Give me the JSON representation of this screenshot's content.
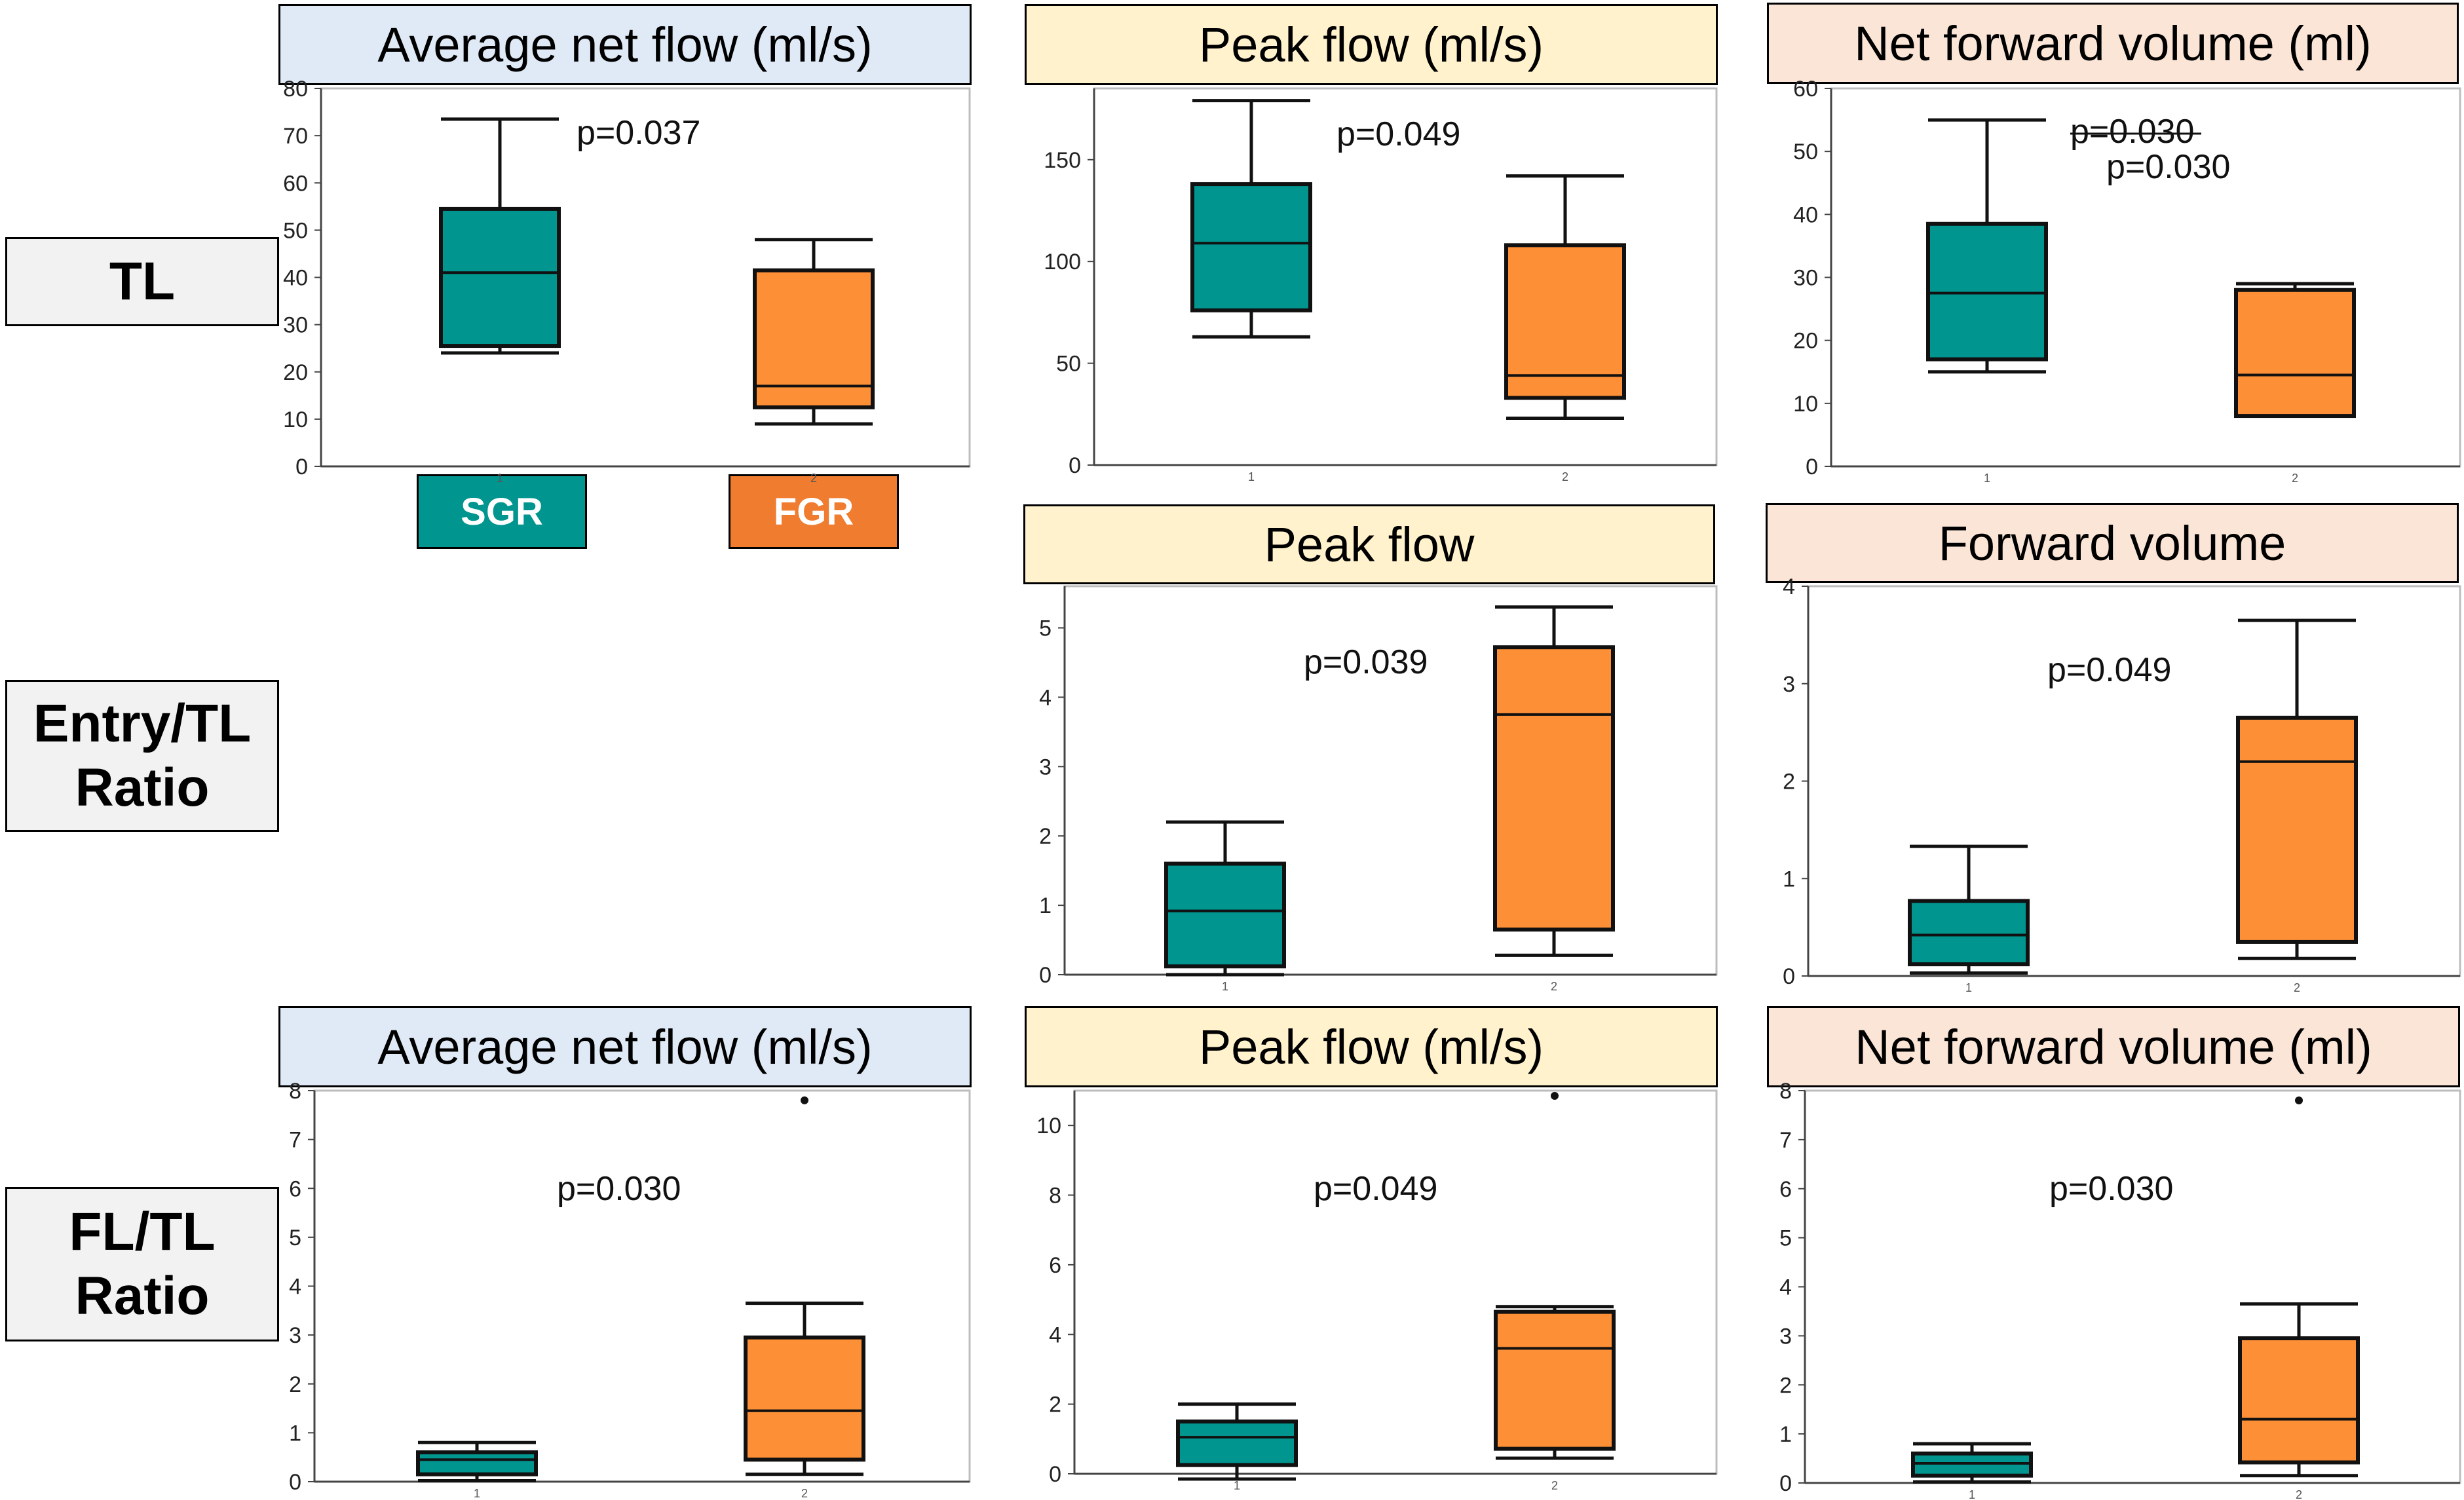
{
  "row_labels": {
    "tl": "TL",
    "entry": [
      "Entry/TL",
      "Ratio"
    ],
    "fl": [
      "FL/TL",
      "Ratio"
    ]
  },
  "legend": {
    "sgr": {
      "label": "SGR",
      "color": "#00958f"
    },
    "fgr": {
      "label": "FGR",
      "color": "#fd8f36"
    }
  },
  "headers": {
    "tl_avg": "Average net flow (ml/s)",
    "tl_peak": "Peak flow (ml/s)",
    "tl_vol": "Net forward volume (ml)",
    "entry_peak": "Peak flow",
    "entry_vol": "Forward volume",
    "fl_avg": "Average net flow (ml/s)",
    "fl_peak": "Peak flow (ml/s)",
    "fl_vol": "Net forward volume (ml)"
  },
  "chart_data": [
    {
      "id": "tl_avg",
      "type": "box",
      "title": "Average net flow (ml/s)",
      "categories": [
        "1",
        "2"
      ],
      "ylim": [
        0,
        80
      ],
      "yticks": [
        0,
        10,
        20,
        30,
        40,
        50,
        60,
        70,
        80
      ],
      "annotation": "p=0.037",
      "boxes": [
        {
          "name": "SGR",
          "min": 24,
          "q1": 25.5,
          "median": 41,
          "q3": 54.5,
          "max": 73.5
        },
        {
          "name": "FGR",
          "min": 9,
          "q1": 12.5,
          "median": 17,
          "q3": 41.5,
          "max": 48
        }
      ],
      "outliers": []
    },
    {
      "id": "tl_peak",
      "type": "box",
      "title": "Peak flow (ml/s)",
      "categories": [
        "1",
        "2"
      ],
      "ylim": [
        0,
        185
      ],
      "yticks": [
        0,
        50,
        100,
        150
      ],
      "annotation": "p=0.049",
      "boxes": [
        {
          "name": "SGR",
          "min": 63,
          "q1": 76,
          "median": 109,
          "q3": 138,
          "max": 179
        },
        {
          "name": "FGR",
          "min": 23,
          "q1": 33,
          "median": 44,
          "q3": 108,
          "max": 142
        }
      ],
      "outliers": []
    },
    {
      "id": "tl_vol",
      "type": "box",
      "title": "Net forward volume (ml)",
      "categories": [
        "1",
        "2"
      ],
      "ylim": [
        0,
        60
      ],
      "yticks": [
        0,
        10,
        20,
        30,
        40,
        50,
        60
      ],
      "annotation": "p=0.030",
      "annotation_extra": "p=0.030",
      "boxes": [
        {
          "name": "SGR",
          "min": 15,
          "q1": 17,
          "median": 27.5,
          "q3": 38.5,
          "max": 55
        },
        {
          "name": "FGR",
          "min": 8,
          "q1": 8,
          "median": 14.5,
          "q3": 28,
          "max": 29
        }
      ],
      "outliers": []
    },
    {
      "id": "entry_peak",
      "type": "box",
      "title": "Peak flow",
      "categories": [
        "1",
        "2"
      ],
      "ylim": [
        0,
        5.6
      ],
      "yticks": [
        0,
        1,
        2,
        3,
        4,
        5
      ],
      "annotation": "p=0.039",
      "boxes": [
        {
          "name": "SGR",
          "min": 0,
          "q1": 0.12,
          "median": 0.92,
          "q3": 1.6,
          "max": 2.2
        },
        {
          "name": "FGR",
          "min": 0.28,
          "q1": 0.65,
          "median": 3.75,
          "q3": 4.72,
          "max": 5.3
        }
      ],
      "outliers": []
    },
    {
      "id": "entry_vol",
      "type": "box",
      "title": "Forward volume",
      "categories": [
        "1",
        "2"
      ],
      "ylim": [
        0,
        4
      ],
      "yticks": [
        0,
        1,
        2,
        3,
        4
      ],
      "annotation": "p=0.049",
      "boxes": [
        {
          "name": "SGR",
          "min": 0.03,
          "q1": 0.12,
          "median": 0.42,
          "q3": 0.77,
          "max": 1.33
        },
        {
          "name": "FGR",
          "min": 0.18,
          "q1": 0.35,
          "median": 2.2,
          "q3": 2.65,
          "max": 3.65
        }
      ],
      "outliers": []
    },
    {
      "id": "fl_avg",
      "type": "box",
      "title": "Average net flow (ml/s)",
      "categories": [
        "1",
        "2"
      ],
      "ylim": [
        0,
        8
      ],
      "yticks": [
        0,
        1,
        2,
        3,
        4,
        5,
        6,
        7,
        8
      ],
      "annotation": "p=0.030",
      "boxes": [
        {
          "name": "SGR",
          "min": 0.02,
          "q1": 0.15,
          "median": 0.45,
          "q3": 0.6,
          "max": 0.8
        },
        {
          "name": "FGR",
          "min": 0.15,
          "q1": 0.45,
          "median": 1.45,
          "q3": 2.95,
          "max": 3.65
        }
      ],
      "outliers": [
        {
          "group": 2,
          "value": 7.8
        }
      ]
    },
    {
      "id": "fl_peak",
      "type": "box",
      "title": "Peak flow (ml/s)",
      "categories": [
        "1",
        "2"
      ],
      "ylim": [
        0,
        11
      ],
      "yticks": [
        0,
        2,
        4,
        6,
        8,
        10
      ],
      "annotation": "p=0.049",
      "boxes": [
        {
          "name": "SGR",
          "min": -0.15,
          "q1": 0.25,
          "median": 1.05,
          "q3": 1.5,
          "max": 2.0
        },
        {
          "name": "FGR",
          "min": 0.45,
          "q1": 0.72,
          "median": 3.6,
          "q3": 4.65,
          "max": 4.8
        }
      ],
      "outliers": [
        {
          "group": 2,
          "value": 10.85
        }
      ]
    },
    {
      "id": "fl_vol",
      "type": "box",
      "title": "Net forward volume (ml)",
      "categories": [
        "1",
        "2"
      ],
      "ylim": [
        0,
        8
      ],
      "yticks": [
        0,
        1,
        2,
        3,
        4,
        5,
        6,
        7,
        8
      ],
      "annotation": "p=0.030",
      "boxes": [
        {
          "name": "SGR",
          "min": 0.02,
          "q1": 0.15,
          "median": 0.4,
          "q3": 0.6,
          "max": 0.8
        },
        {
          "name": "FGR",
          "min": 0.15,
          "q1": 0.42,
          "median": 1.3,
          "q3": 2.95,
          "max": 3.65
        }
      ],
      "outliers": [
        {
          "group": 2,
          "value": 7.8
        }
      ]
    }
  ]
}
